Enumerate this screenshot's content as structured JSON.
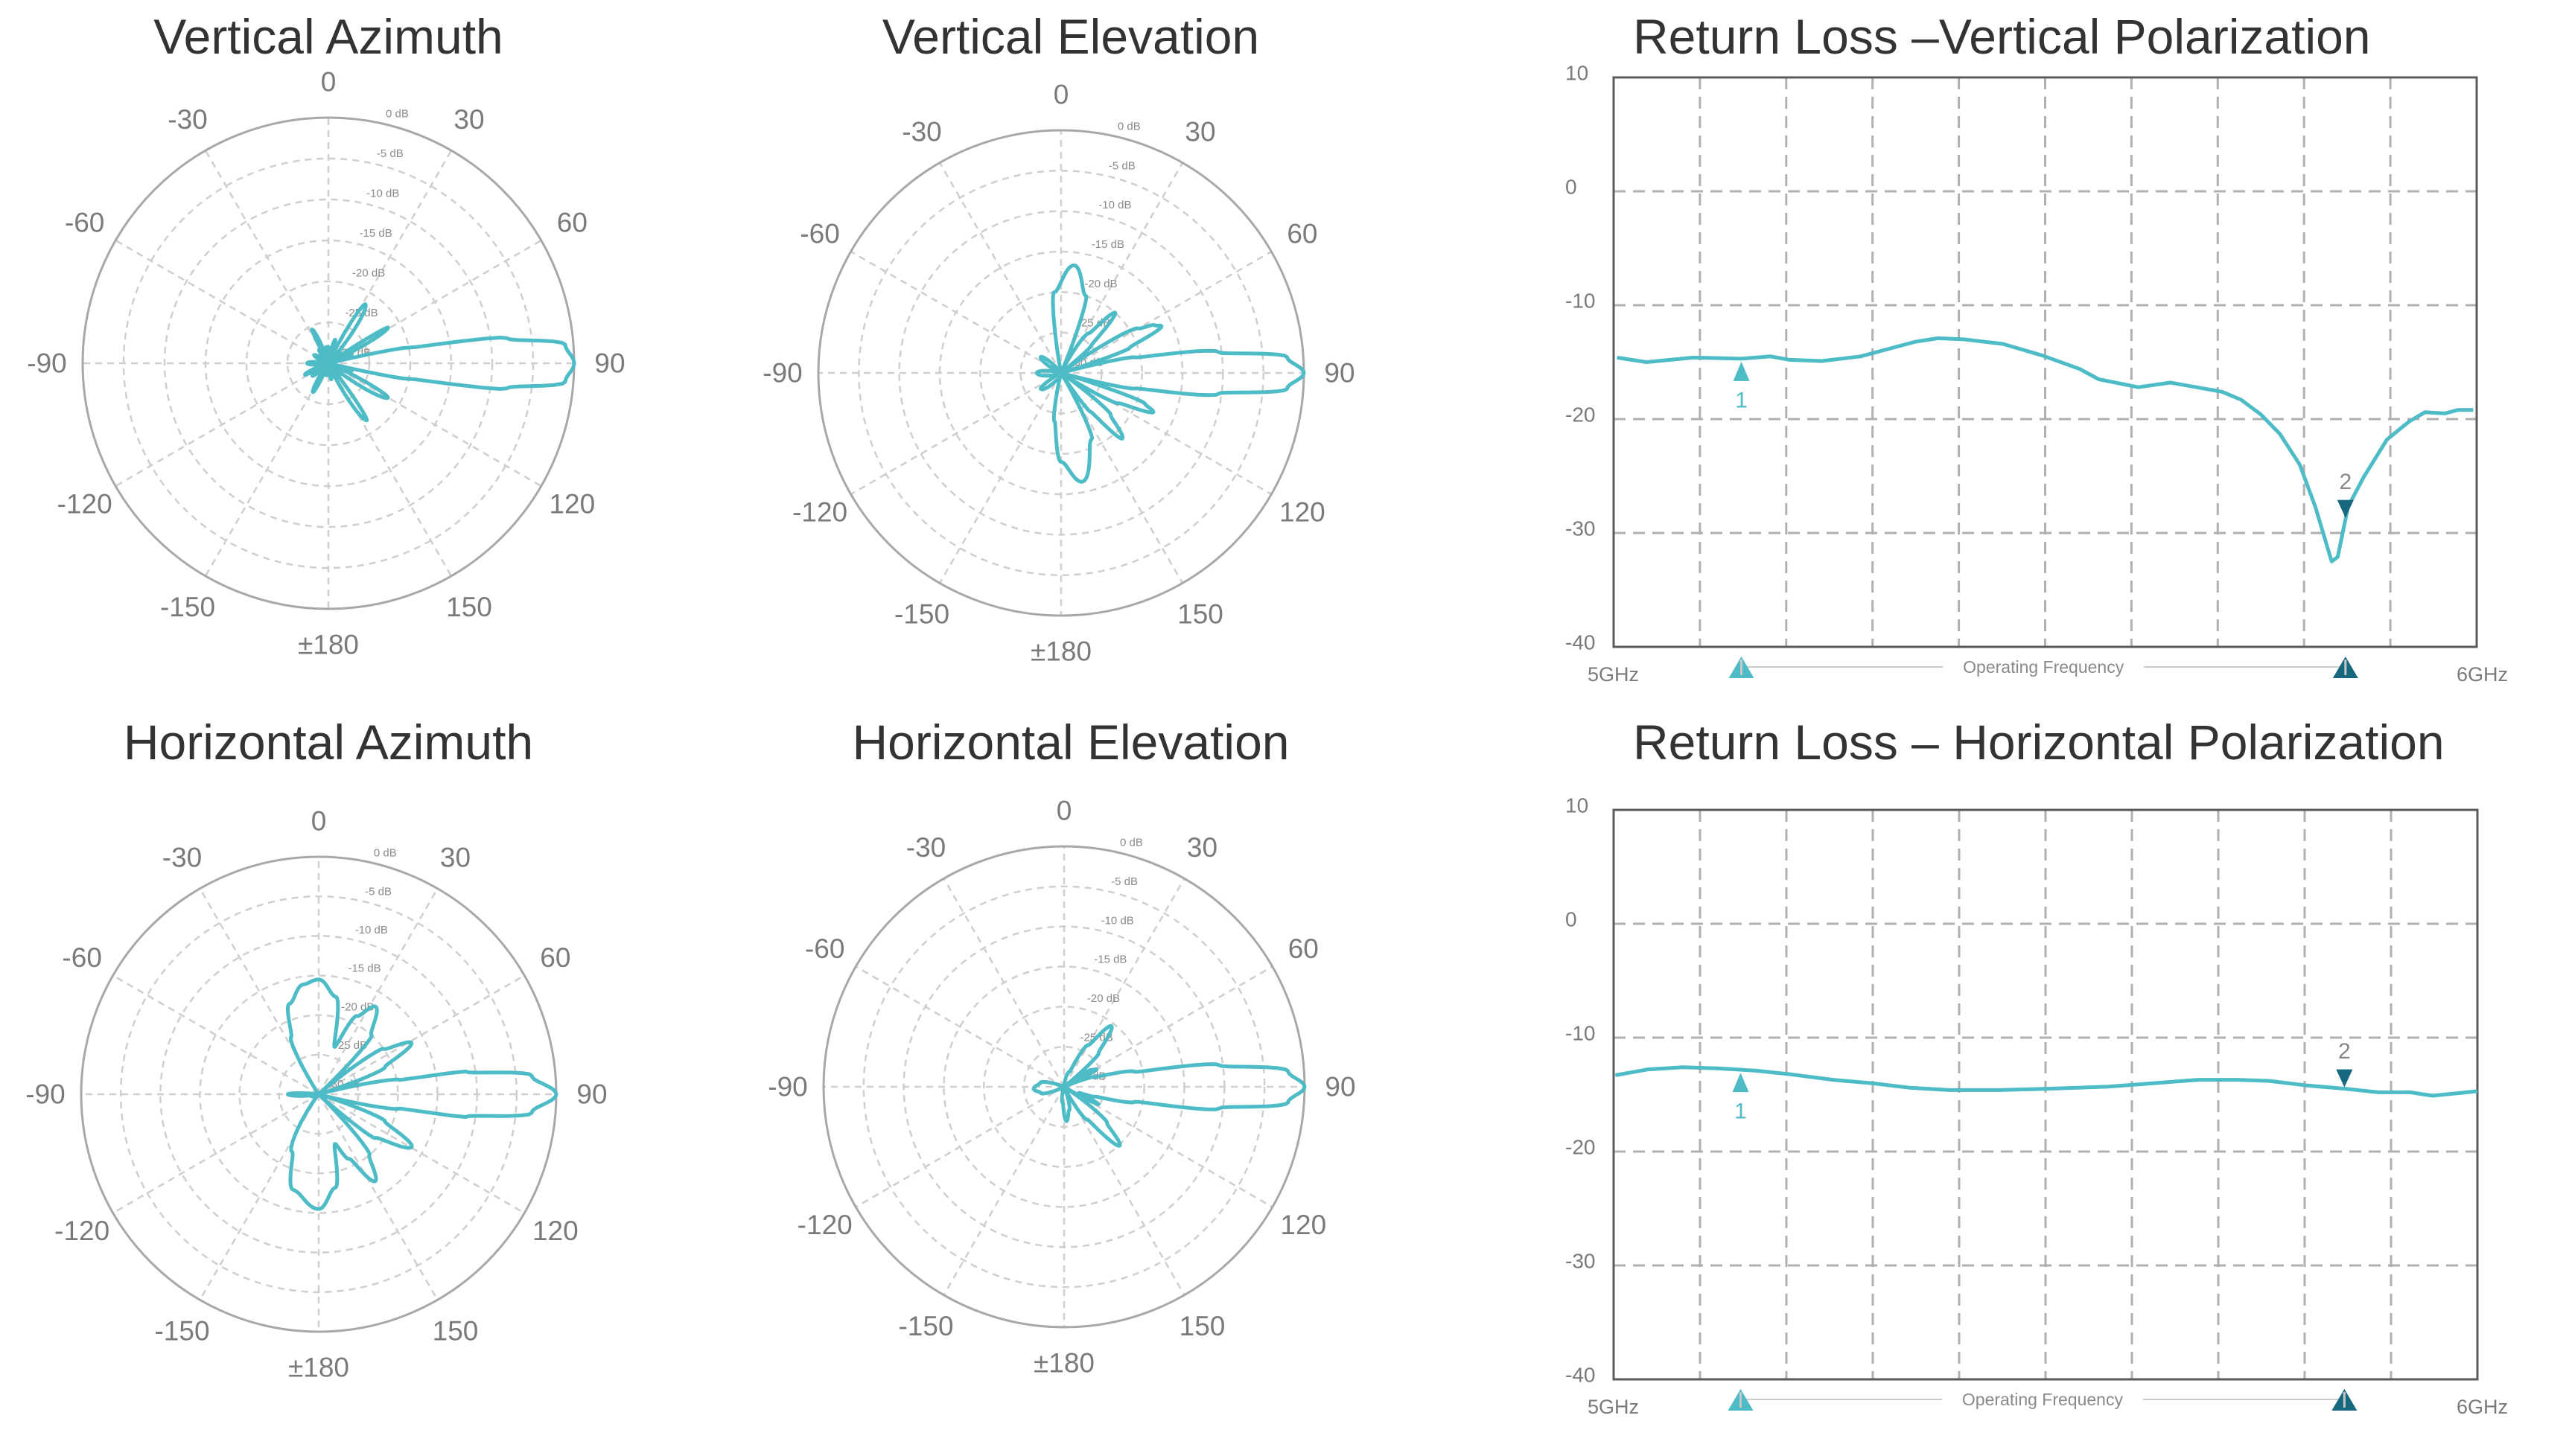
{
  "colors": {
    "curve": "#4dbcc6",
    "marker_light": "#4dbcc6",
    "marker_dark": "#15687e",
    "grid": "#cfcfcf",
    "axis": "#a8a8a8",
    "text": "#7a7a7a",
    "title": "#333333"
  },
  "chart_data": [
    {
      "id": "vertical_azimuth",
      "type": "polar",
      "title": "Vertical Azimuth",
      "angle_tick_labels": [
        "0",
        "30",
        "60",
        "90",
        "120",
        "150",
        "±180",
        "-150",
        "-120",
        "-90",
        "-60",
        "-30"
      ],
      "radial_tick_labels": [
        "0 dB",
        "-5 dB",
        "-10 dB",
        "-15 dB",
        "-20 dB",
        "-25 dB",
        "-30 dB"
      ],
      "rlim": [
        -30,
        0
      ],
      "grid": true,
      "points": [
        [
          0,
          -28
        ],
        [
          8,
          -30
        ],
        [
          16,
          -27
        ],
        [
          24,
          -30
        ],
        [
          32,
          -21.5
        ],
        [
          45,
          -30
        ],
        [
          52,
          -28
        ],
        [
          55,
          -30
        ],
        [
          59,
          -21.5
        ],
        [
          68,
          -30
        ],
        [
          72,
          -27
        ],
        [
          76,
          -30
        ],
        [
          79,
          -20
        ],
        [
          82,
          -8
        ],
        [
          85.5,
          -1
        ],
        [
          90,
          0
        ],
        [
          94.5,
          -1
        ],
        [
          98,
          -8
        ],
        [
          101,
          -20
        ],
        [
          104,
          -30
        ],
        [
          108,
          -27
        ],
        [
          112,
          -30
        ],
        [
          120,
          -21.6
        ],
        [
          132,
          -30
        ],
        [
          137,
          -28
        ],
        [
          140,
          -30
        ],
        [
          146,
          -21.6
        ],
        [
          158,
          -30
        ],
        [
          170,
          -28
        ],
        [
          180,
          -30
        ],
        [
          -170,
          -28.5
        ],
        [
          -160,
          -30
        ],
        [
          -152,
          -26
        ],
        [
          -140,
          -30
        ],
        [
          -128,
          -27.5
        ],
        [
          -122,
          -30
        ],
        [
          -116,
          -26.8
        ],
        [
          -105,
          -30
        ],
        [
          -90,
          -27.4
        ],
        [
          -75,
          -30
        ],
        [
          -60,
          -28
        ],
        [
          -45,
          -30
        ],
        [
          -35,
          -28
        ],
        [
          -30,
          -30
        ],
        [
          -26,
          -25.4
        ],
        [
          -15,
          -30
        ],
        [
          -8,
          -28
        ]
      ]
    },
    {
      "id": "vertical_elevation",
      "type": "polar",
      "title": "Vertical Elevation",
      "angle_tick_labels": [
        "0",
        "30",
        "60",
        "90",
        "120",
        "150",
        "±180",
        "-150",
        "-120",
        "-90",
        "-60",
        "-30"
      ],
      "radial_tick_labels": [
        "0 dB",
        "-5 dB",
        "-10 dB",
        "-15 dB",
        "-20 dB",
        "-25 dB",
        "-30 dB"
      ],
      "rlim": [
        -30,
        0
      ],
      "grid": true,
      "points": [
        [
          -12,
          -30
        ],
        [
          -5,
          -20
        ],
        [
          7,
          -16.6
        ],
        [
          18,
          -20
        ],
        [
          24,
          -30
        ],
        [
          35,
          -24
        ],
        [
          42,
          -20
        ],
        [
          48,
          -25
        ],
        [
          52,
          -30
        ],
        [
          60,
          -19
        ],
        [
          63,
          -17
        ],
        [
          65,
          -16.3
        ],
        [
          70,
          -21
        ],
        [
          74,
          -30
        ],
        [
          78,
          -20.7
        ],
        [
          82.4,
          -10.4
        ],
        [
          86,
          -2
        ],
        [
          90,
          0
        ],
        [
          94,
          -2
        ],
        [
          97.6,
          -10.4
        ],
        [
          102,
          -20.7
        ],
        [
          106,
          -30
        ],
        [
          110,
          -19
        ],
        [
          113,
          -17.6
        ],
        [
          118,
          -22
        ],
        [
          124,
          -30
        ],
        [
          130,
          -22
        ],
        [
          137,
          -18.9
        ],
        [
          143,
          -24
        ],
        [
          148,
          -30
        ],
        [
          155,
          -21
        ],
        [
          169,
          -16.3
        ],
        [
          180,
          -19
        ],
        [
          -172,
          -24
        ],
        [
          -165,
          -30
        ],
        [
          -150,
          -29
        ],
        [
          -128,
          -26.8
        ],
        [
          -115,
          -30
        ],
        [
          -90,
          -27
        ],
        [
          -70,
          -30
        ],
        [
          -52,
          -26.8
        ],
        [
          -35,
          -30
        ]
      ]
    },
    {
      "id": "vertical_return_loss",
      "type": "line",
      "title": "Return Loss –Vertical Polarization",
      "xlabel": "Operating Frequency",
      "x_tick_labels": [
        "5GHz",
        "6GHz"
      ],
      "xlim": [
        5,
        6
      ],
      "ylim": [
        -40,
        10
      ],
      "y_ticks": [
        "10",
        "0",
        "-10",
        "-20",
        "-30",
        "-40"
      ],
      "grid": true,
      "x": [
        5.004,
        5.038,
        5.092,
        5.148,
        5.182,
        5.204,
        5.241,
        5.286,
        5.35,
        5.376,
        5.406,
        5.451,
        5.496,
        5.54,
        5.562,
        5.608,
        5.645,
        5.705,
        5.727,
        5.75,
        5.772,
        5.795,
        5.813,
        5.832,
        5.839,
        5.851,
        5.869,
        5.896,
        5.922,
        5.94,
        5.963,
        5.978,
        5.996
      ],
      "y": [
        -14.6,
        -15.0,
        -14.6,
        -14.7,
        -14.5,
        -14.8,
        -14.9,
        -14.5,
        -13.2,
        -12.9,
        -13.0,
        -13.4,
        -14.4,
        -15.6,
        -16.5,
        -17.2,
        -16.8,
        -17.6,
        -18.3,
        -19.6,
        -21.3,
        -24.0,
        -27.7,
        -32.5,
        -32.1,
        -27.7,
        -25.1,
        -21.8,
        -20.2,
        -19.4,
        -19.5,
        -19.2,
        -19.2
      ],
      "markers": [
        {
          "label": "1",
          "x": 5.148,
          "direction": "up",
          "color": "light"
        },
        {
          "label": "2",
          "x": 5.848,
          "direction": "down",
          "color": "dark"
        }
      ]
    },
    {
      "id": "horizontal_azimuth",
      "type": "polar",
      "title": "Horizontal Azimuth",
      "angle_tick_labels": [
        "0",
        "30",
        "60",
        "90",
        "120",
        "150",
        "±180",
        "-150",
        "-120",
        "-90",
        "-60",
        "-30"
      ],
      "radial_tick_labels": [
        "0 dB",
        "-5 dB",
        "-10 dB",
        "-15 dB",
        "-20 dB",
        "-25 dB",
        "-30 dB"
      ],
      "rlim": [
        -30,
        0
      ],
      "grid": true,
      "points": [
        [
          0,
          -15.5
        ],
        [
          10,
          -17.5
        ],
        [
          18.5,
          -23.7
        ],
        [
          26,
          -19
        ],
        [
          33,
          -16.8
        ],
        [
          42,
          -20
        ],
        [
          48,
          -30
        ],
        [
          55,
          -20
        ],
        [
          61,
          -16.6
        ],
        [
          68,
          -21
        ],
        [
          74,
          -30
        ],
        [
          80,
          -19.6
        ],
        [
          81.2,
          -11.2
        ],
        [
          85,
          -3
        ],
        [
          90,
          0
        ],
        [
          95,
          -3
        ],
        [
          98.8,
          -11.2
        ],
        [
          100,
          -19.6
        ],
        [
          106,
          -30
        ],
        [
          112,
          -21
        ],
        [
          119.5,
          -16.5
        ],
        [
          128,
          -21
        ],
        [
          133,
          -30
        ],
        [
          140,
          -20
        ],
        [
          147,
          -16.9
        ],
        [
          155,
          -21
        ],
        [
          162,
          -23.4
        ],
        [
          170,
          -18
        ],
        [
          180,
          -15.5
        ],
        [
          -165,
          -17.5
        ],
        [
          -155,
          -22
        ],
        [
          -140,
          -30
        ],
        [
          -100,
          -29
        ],
        [
          -90,
          -26.1
        ],
        [
          -82,
          -30
        ],
        [
          -45,
          -30
        ],
        [
          -35,
          -30
        ],
        [
          -26,
          -22
        ],
        [
          -18,
          -18
        ],
        [
          -8,
          -16
        ]
      ]
    },
    {
      "id": "horizontal_elevation",
      "type": "polar",
      "title": "Horizontal Elevation",
      "angle_tick_labels": [
        "0",
        "30",
        "60",
        "90",
        "120",
        "150",
        "±180",
        "-150",
        "-120",
        "-90",
        "-60",
        "-30"
      ],
      "radial_tick_labels": [
        "0 dB",
        "-5 dB",
        "-10 dB",
        "-15 dB",
        "-20 dB",
        "-25 dB",
        "-30 dB"
      ],
      "rlim": [
        -30,
        0
      ],
      "grid": true,
      "points": [
        [
          0,
          -30
        ],
        [
          20,
          -28
        ],
        [
          30,
          -24
        ],
        [
          38,
          -20.4
        ],
        [
          46,
          -24
        ],
        [
          52,
          -30
        ],
        [
          58,
          -26
        ],
        [
          62,
          -25.4
        ],
        [
          66,
          -30
        ],
        [
          72,
          -26
        ],
        [
          78,
          -21
        ],
        [
          82,
          -10.5
        ],
        [
          86,
          -2
        ],
        [
          90,
          0
        ],
        [
          94,
          -2
        ],
        [
          98,
          -10.5
        ],
        [
          102,
          -21
        ],
        [
          108,
          -26
        ],
        [
          112,
          -28
        ],
        [
          117,
          -25.2
        ],
        [
          122,
          -30
        ],
        [
          130,
          -23
        ],
        [
          136.6,
          -19.9
        ],
        [
          145,
          -25
        ],
        [
          155,
          -30
        ],
        [
          168,
          -27
        ],
        [
          176,
          -25.7
        ],
        [
          -175,
          -28
        ],
        [
          -160,
          -30
        ],
        [
          -120,
          -30
        ],
        [
          -105,
          -27
        ],
        [
          -94,
          -26.2
        ],
        [
          -80,
          -27
        ],
        [
          -65,
          -30
        ],
        [
          -30,
          -30
        ]
      ]
    },
    {
      "id": "horizontal_return_loss",
      "type": "line",
      "title": "Return Loss – Horizontal Polarization",
      "xlabel": "Operating Frequency",
      "x_tick_labels": [
        "5GHz",
        "6GHz"
      ],
      "xlim": [
        5,
        6
      ],
      "ylim": [
        -40,
        10
      ],
      "y_ticks": [
        "10",
        "0",
        "-10",
        "-20",
        "-30",
        "-40"
      ],
      "grid": true,
      "x": [
        5.002,
        5.039,
        5.08,
        5.121,
        5.165,
        5.203,
        5.254,
        5.299,
        5.343,
        5.388,
        5.447,
        5.499,
        5.573,
        5.625,
        5.677,
        5.722,
        5.759,
        5.803,
        5.848,
        5.885,
        5.922,
        5.948,
        5.974,
        6.0
      ],
      "y": [
        -13.3,
        -12.8,
        -12.6,
        -12.7,
        -12.9,
        -13.2,
        -13.7,
        -14.0,
        -14.4,
        -14.6,
        -14.6,
        -14.5,
        -14.3,
        -14.0,
        -13.7,
        -13.7,
        -13.8,
        -14.2,
        -14.5,
        -14.8,
        -14.8,
        -15.1,
        -14.9,
        -14.7
      ],
      "markers": [
        {
          "label": "1",
          "x": 5.147,
          "direction": "up",
          "color": "light"
        },
        {
          "label": "2",
          "x": 5.846,
          "direction": "down",
          "color": "dark"
        }
      ]
    }
  ]
}
